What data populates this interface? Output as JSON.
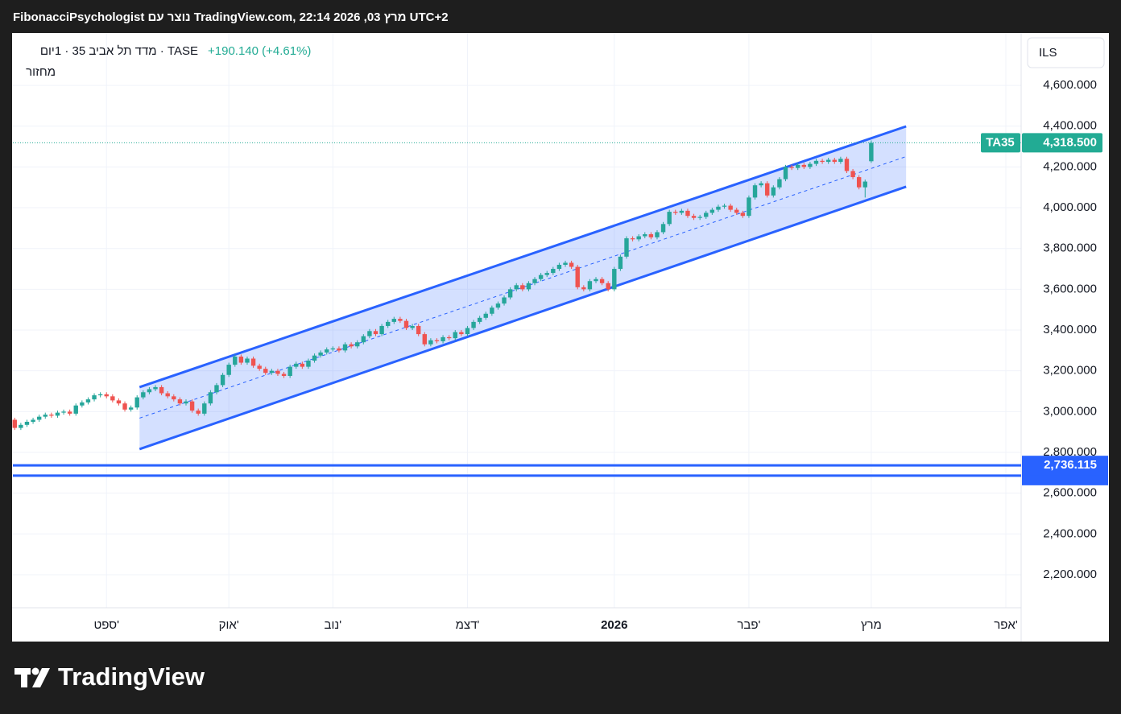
{
  "header": "FibonacciPsychologist נוצר עם TradingView.com, 22:14 2026 ,03 מרץ UTC+2",
  "logo": "TradingView",
  "chart_data": {
    "type": "candlestick",
    "title": "TASE · מדד תל אביב 35 · 1יום",
    "change": "+190.140 (+4.61%)",
    "subtitle": "מחזור",
    "currency": "ILS",
    "up_color": "#26a69a",
    "down_color": "#ef5350",
    "grid": true,
    "xlim": [
      -0.3,
      164.5
    ],
    "ylim": [
      2038,
      4853
    ],
    "xticks": [
      {
        "value": 15,
        "label": "ספט'"
      },
      {
        "value": 35,
        "label": "אוק'"
      },
      {
        "value": 52,
        "label": "נוב'"
      },
      {
        "value": 74,
        "label": "דצמ'"
      },
      {
        "value": 98,
        "label": "2026"
      },
      {
        "value": 120,
        "label": "פבר'"
      },
      {
        "value": 140,
        "label": "מרץ"
      },
      {
        "value": 162,
        "label": "אפר'"
      }
    ],
    "yticks": [
      {
        "value": 2200,
        "label": "2,200.000"
      },
      {
        "value": 2400,
        "label": "2,400.000"
      },
      {
        "value": 2600,
        "label": "2,600.000"
      },
      {
        "value": 2800,
        "label": "2,800.000"
      },
      {
        "value": 3000,
        "label": "3,000.000"
      },
      {
        "value": 3200,
        "label": "3,200.000"
      },
      {
        "value": 3400,
        "label": "3,400.000"
      },
      {
        "value": 3600,
        "label": "3,600.000"
      },
      {
        "value": 3800,
        "label": "3,800.000"
      },
      {
        "value": 4000,
        "label": "4,000.000"
      },
      {
        "value": 4200,
        "label": "4,200.000"
      },
      {
        "value": 4400,
        "label": "4,400.000"
      },
      {
        "value": 4600,
        "label": "4,600.000"
      }
    ],
    "open": [
      2960,
      2920,
      2935,
      2950,
      2960,
      2975,
      2985,
      2980,
      2995,
      3000,
      2990,
      3030,
      3045,
      3060,
      3080,
      3085,
      3075,
      3055,
      3040,
      3010,
      3020,
      3070,
      3095,
      3110,
      3120,
      3090,
      3075,
      3060,
      3040,
      3050,
      3005,
      2990,
      3040,
      3095,
      3130,
      3180,
      3230,
      3270,
      3240,
      3260,
      3225,
      3210,
      3190,
      3200,
      3185,
      3175,
      3220,
      3235,
      3220,
      3250,
      3275,
      3290,
      3305,
      3310,
      3300,
      3330,
      3320,
      3340,
      3370,
      3395,
      3380,
      3420,
      3440,
      3455,
      3445,
      3410,
      3420,
      3380,
      3330,
      3350,
      3345,
      3365,
      3360,
      3390,
      3380,
      3410,
      3440,
      3460,
      3480,
      3510,
      3530,
      3560,
      3600,
      3620,
      3600,
      3630,
      3650,
      3670,
      3680,
      3700,
      3720,
      3730,
      3710,
      3610,
      3600,
      3640,
      3650,
      3630,
      3600,
      3700,
      3760,
      3850,
      3845,
      3860,
      3870,
      3855,
      3880,
      3920,
      3980,
      3975,
      3985,
      3960,
      3950,
      3955,
      3975,
      3990,
      4005,
      4010,
      3990,
      3975,
      3960,
      4050,
      4110,
      4120,
      4060,
      4100,
      4140,
      4200,
      4195,
      4210,
      4200,
      4215,
      4230,
      4225,
      4235,
      4225,
      4240,
      4180,
      4150,
      4100,
      4228
    ],
    "high": [
      2970,
      2945,
      2960,
      2970,
      2985,
      2995,
      2995,
      3005,
      3010,
      3010,
      3040,
      3055,
      3070,
      3090,
      3095,
      3095,
      3085,
      3065,
      3050,
      3030,
      3080,
      3105,
      3120,
      3130,
      3130,
      3100,
      3085,
      3070,
      3060,
      3060,
      3015,
      3050,
      3105,
      3140,
      3190,
      3240,
      3280,
      3280,
      3270,
      3270,
      3235,
      3220,
      3210,
      3210,
      3195,
      3230,
      3245,
      3245,
      3260,
      3285,
      3300,
      3315,
      3320,
      3320,
      3340,
      3340,
      3350,
      3380,
      3405,
      3405,
      3430,
      3450,
      3465,
      3465,
      3455,
      3430,
      3430,
      3390,
      3360,
      3360,
      3375,
      3375,
      3400,
      3400,
      3420,
      3450,
      3470,
      3490,
      3520,
      3540,
      3570,
      3610,
      3630,
      3630,
      3640,
      3660,
      3680,
      3690,
      3710,
      3730,
      3740,
      3740,
      3720,
      3620,
      3650,
      3660,
      3660,
      3640,
      3710,
      3770,
      3860,
      3860,
      3870,
      3880,
      3880,
      3890,
      3930,
      3990,
      3990,
      3995,
      3995,
      3970,
      3965,
      3985,
      4000,
      4015,
      4020,
      4020,
      4000,
      3985,
      4060,
      4120,
      4130,
      4130,
      4110,
      4150,
      4210,
      4210,
      4220,
      4220,
      4225,
      4240,
      4240,
      4245,
      4245,
      4250,
      4250,
      4190,
      4160,
      4138,
      4330
    ],
    "low": [
      2910,
      2910,
      2925,
      2940,
      2950,
      2965,
      2970,
      2970,
      2985,
      2980,
      2980,
      3020,
      3035,
      3050,
      3070,
      3065,
      3045,
      3030,
      3000,
      3000,
      3010,
      3060,
      3085,
      3100,
      3080,
      3065,
      3050,
      3030,
      3030,
      2995,
      2980,
      2980,
      3030,
      3085,
      3120,
      3170,
      3220,
      3230,
      3230,
      3215,
      3200,
      3180,
      3180,
      3175,
      3165,
      3165,
      3210,
      3210,
      3210,
      3240,
      3265,
      3280,
      3295,
      3290,
      3290,
      3310,
      3310,
      3330,
      3360,
      3370,
      3370,
      3410,
      3430,
      3435,
      3400,
      3400,
      3370,
      3320,
      3320,
      3335,
      3335,
      3350,
      3350,
      3370,
      3370,
      3400,
      3430,
      3450,
      3470,
      3500,
      3520,
      3550,
      3590,
      3590,
      3590,
      3620,
      3640,
      3660,
      3670,
      3690,
      3710,
      3700,
      3600,
      3590,
      3590,
      3630,
      3620,
      3590,
      3590,
      3690,
      3750,
      3835,
      3835,
      3850,
      3845,
      3845,
      3870,
      3910,
      3965,
      3965,
      3950,
      3940,
      3940,
      3945,
      3965,
      3980,
      3995,
      3980,
      3965,
      3950,
      3950,
      4040,
      4100,
      4050,
      4050,
      4090,
      4130,
      4185,
      4185,
      4190,
      4190,
      4205,
      4215,
      4215,
      4215,
      4215,
      4170,
      4140,
      4090,
      4050,
      4220
    ],
    "close": [
      2920,
      2935,
      2950,
      2960,
      2975,
      2985,
      2980,
      2995,
      3000,
      2990,
      3030,
      3045,
      3060,
      3080,
      3085,
      3075,
      3055,
      3040,
      3010,
      3020,
      3070,
      3095,
      3110,
      3120,
      3090,
      3075,
      3060,
      3040,
      3050,
      3005,
      2990,
      3040,
      3095,
      3130,
      3180,
      3230,
      3270,
      3240,
      3260,
      3225,
      3210,
      3190,
      3200,
      3185,
      3175,
      3220,
      3235,
      3220,
      3250,
      3275,
      3290,
      3305,
      3310,
      3300,
      3330,
      3320,
      3340,
      3370,
      3395,
      3380,
      3420,
      3440,
      3455,
      3445,
      3410,
      3420,
      3380,
      3330,
      3350,
      3345,
      3365,
      3360,
      3390,
      3380,
      3410,
      3440,
      3460,
      3480,
      3510,
      3530,
      3560,
      3600,
      3620,
      3600,
      3630,
      3650,
      3670,
      3680,
      3700,
      3720,
      3730,
      3710,
      3610,
      3600,
      3640,
      3650,
      3630,
      3600,
      3700,
      3760,
      3850,
      3845,
      3860,
      3870,
      3855,
      3880,
      3920,
      3980,
      3975,
      3985,
      3960,
      3950,
      3955,
      3975,
      3990,
      4005,
      4010,
      3990,
      3975,
      3960,
      4050,
      4110,
      4120,
      4060,
      4100,
      4140,
      4200,
      4195,
      4210,
      4200,
      4215,
      4230,
      4225,
      4235,
      4225,
      4240,
      4180,
      4150,
      4100,
      4128.36,
      4318.5
    ],
    "channel": {
      "color": "#2962ff",
      "x": [
        20.4,
        145.7
      ],
      "upper": [
        3120,
        4399
      ],
      "lower": [
        2816,
        4103
      ]
    },
    "hlines": [
      {
        "value": 2736.115,
        "label": "2,736.115",
        "color": "#2962ff"
      },
      {
        "value": 2686,
        "color": "#2962ff"
      }
    ],
    "last_price": {
      "name": "TA35",
      "value": 4318.5,
      "label": "4,318.500",
      "color": "#22ab94"
    }
  }
}
